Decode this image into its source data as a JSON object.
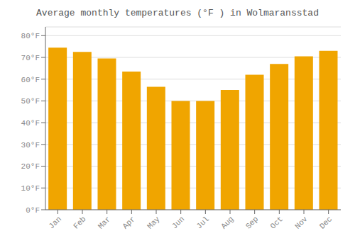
{
  "chart_data": {
    "type": "bar",
    "title": "Average monthly temperatures (°F ) in Wolmaransstad",
    "categories": [
      "Jan",
      "Feb",
      "Mar",
      "Apr",
      "May",
      "Jun",
      "Jul",
      "Aug",
      "Sep",
      "Oct",
      "Nov",
      "Dec"
    ],
    "values": [
      74.5,
      72.5,
      69.5,
      63.5,
      56.5,
      50.0,
      50.0,
      55.0,
      62.0,
      67.0,
      70.5,
      73.0
    ],
    "color": "#F0A500",
    "ylim": [
      0,
      84
    ],
    "yticks": [
      {
        "value": 0,
        "label": "0°F"
      },
      {
        "value": 10,
        "label": "10°F"
      },
      {
        "value": 20,
        "label": "20°F"
      },
      {
        "value": 30,
        "label": "30°F"
      },
      {
        "value": 40,
        "label": "40°F"
      },
      {
        "value": 50,
        "label": "50°F"
      },
      {
        "value": 60,
        "label": "60°F"
      },
      {
        "value": 70,
        "label": "70°F"
      },
      {
        "value": 80,
        "label": "80°F"
      }
    ],
    "grid": true
  }
}
